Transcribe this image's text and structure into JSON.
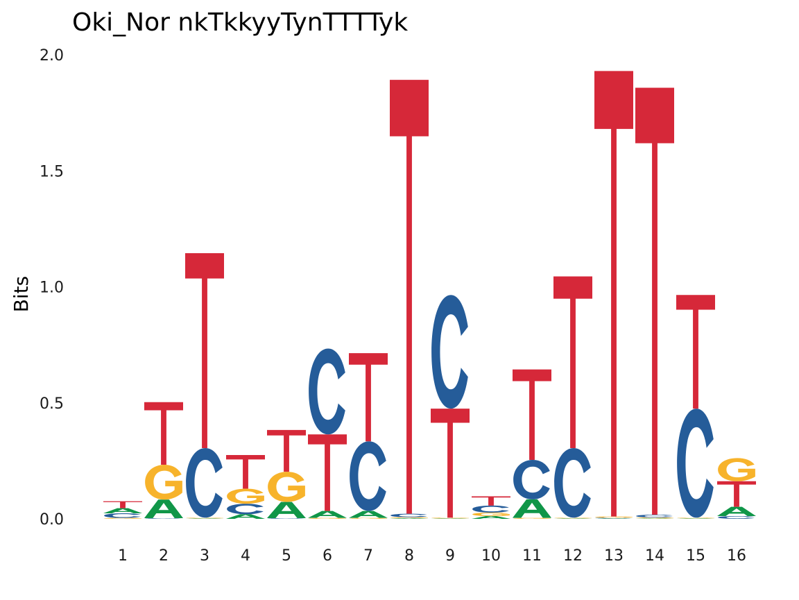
{
  "chart_data": {
    "type": "sequence-logo",
    "title": "Oki_Nor nkTkkyyTynTTTTyk",
    "ylabel": "Bits",
    "xlabel": "",
    "ylim": [
      0,
      2
    ],
    "yticks": [
      "0.0",
      "0.5",
      "1.0",
      "1.5",
      "2.0"
    ],
    "positions": [
      "1",
      "2",
      "3",
      "4",
      "5",
      "6",
      "7",
      "8",
      "9",
      "10",
      "11",
      "12",
      "13",
      "14",
      "15",
      "16"
    ],
    "colors": {
      "A": "#109648",
      "C": "#255C99",
      "G": "#F7B32B",
      "T": "#D62839"
    },
    "stacks": [
      [
        {
          "base": "G",
          "bits": 0.004
        },
        {
          "base": "C",
          "bits": 0.02
        },
        {
          "base": "A",
          "bits": 0.022
        },
        {
          "base": "T",
          "bits": 0.03
        }
      ],
      [
        {
          "base": "C",
          "bits": 0.003
        },
        {
          "base": "A",
          "bits": 0.08
        },
        {
          "base": "G",
          "bits": 0.15
        },
        {
          "base": "T",
          "bits": 0.27
        }
      ],
      [
        {
          "base": "A",
          "bits": 0.002
        },
        {
          "base": "G",
          "bits": 0.003
        },
        {
          "base": "C",
          "bits": 0.3
        },
        {
          "base": "T",
          "bits": 0.84
        }
      ],
      [
        {
          "base": "A",
          "bits": 0.02
        },
        {
          "base": "C",
          "bits": 0.045
        },
        {
          "base": "G",
          "bits": 0.065
        },
        {
          "base": "T",
          "bits": 0.145
        }
      ],
      [
        {
          "base": "C",
          "bits": 0.003
        },
        {
          "base": "A",
          "bits": 0.07
        },
        {
          "base": "G",
          "bits": 0.13
        },
        {
          "base": "T",
          "bits": 0.18
        }
      ],
      [
        {
          "base": "G",
          "bits": 0.004
        },
        {
          "base": "A",
          "bits": 0.03
        },
        {
          "base": "T",
          "bits": 0.33
        },
        {
          "base": "C",
          "bits": 0.37
        }
      ],
      [
        {
          "base": "G",
          "bits": 0.004
        },
        {
          "base": "A",
          "bits": 0.03
        },
        {
          "base": "C",
          "bits": 0.3
        },
        {
          "base": "T",
          "bits": 0.38
        }
      ],
      [
        {
          "base": "A",
          "bits": 0.003
        },
        {
          "base": "G",
          "bits": 0.004
        },
        {
          "base": "C",
          "bits": 0.015
        },
        {
          "base": "T",
          "bits": 1.87
        }
      ],
      [
        {
          "base": "A",
          "bits": 0.002
        },
        {
          "base": "G",
          "bits": 0.003
        },
        {
          "base": "T",
          "bits": 0.47
        },
        {
          "base": "C",
          "bits": 0.49
        }
      ],
      [
        {
          "base": "A",
          "bits": 0.012
        },
        {
          "base": "G",
          "bits": 0.015
        },
        {
          "base": "C",
          "bits": 0.03
        },
        {
          "base": "T",
          "bits": 0.04
        }
      ],
      [
        {
          "base": "G",
          "bits": 0.004
        },
        {
          "base": "A",
          "bits": 0.08
        },
        {
          "base": "C",
          "bits": 0.17
        },
        {
          "base": "T",
          "bits": 0.39
        }
      ],
      [
        {
          "base": "A",
          "bits": 0.002
        },
        {
          "base": "G",
          "bits": 0.003
        },
        {
          "base": "C",
          "bits": 0.3
        },
        {
          "base": "T",
          "bits": 0.74
        }
      ],
      [
        {
          "base": "A",
          "bits": 0.002
        },
        {
          "base": "C",
          "bits": 0.003
        },
        {
          "base": "G",
          "bits": 0.005
        },
        {
          "base": "T",
          "bits": 1.92
        }
      ],
      [
        {
          "base": "A",
          "bits": 0.002
        },
        {
          "base": "G",
          "bits": 0.004
        },
        {
          "base": "C",
          "bits": 0.012
        },
        {
          "base": "T",
          "bits": 1.84
        }
      ],
      [
        {
          "base": "A",
          "bits": 0.002
        },
        {
          "base": "G",
          "bits": 0.003
        },
        {
          "base": "C",
          "bits": 0.47
        },
        {
          "base": "T",
          "bits": 0.49
        }
      ],
      [
        {
          "base": "C",
          "bits": 0.012
        },
        {
          "base": "A",
          "bits": 0.04
        },
        {
          "base": "T",
          "bits": 0.11
        },
        {
          "base": "G",
          "bits": 0.1
        }
      ]
    ]
  }
}
